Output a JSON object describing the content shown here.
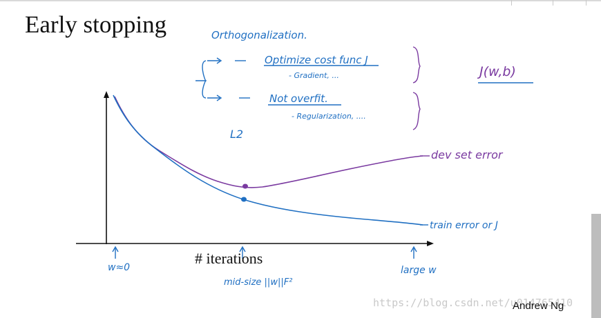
{
  "slide": {
    "title": "Early stopping",
    "x_axis_label": "# iterations",
    "author": "Andrew Ng",
    "watermark": "https://blog.csdn.net/u014765410"
  },
  "annotations": {
    "orthogonalization": "Orthogonalization.",
    "optimize": "Optimize cost func J",
    "optimize_sub": "- Gradient, ...",
    "not_overfit": "Not overfit.",
    "not_overfit_sub": "- Regularization, ....",
    "l2": "L2",
    "j_wb": "J(w,b)",
    "dev_error": "dev set error",
    "train_error": "train error or J",
    "w_zero": "w≈0",
    "mid_size": "mid-size ||w||F²",
    "large_w": "large w"
  },
  "colors": {
    "ink_blue": "#1f6fc2",
    "dev_purple": "#7a3aa0",
    "axis": "#111111"
  }
}
